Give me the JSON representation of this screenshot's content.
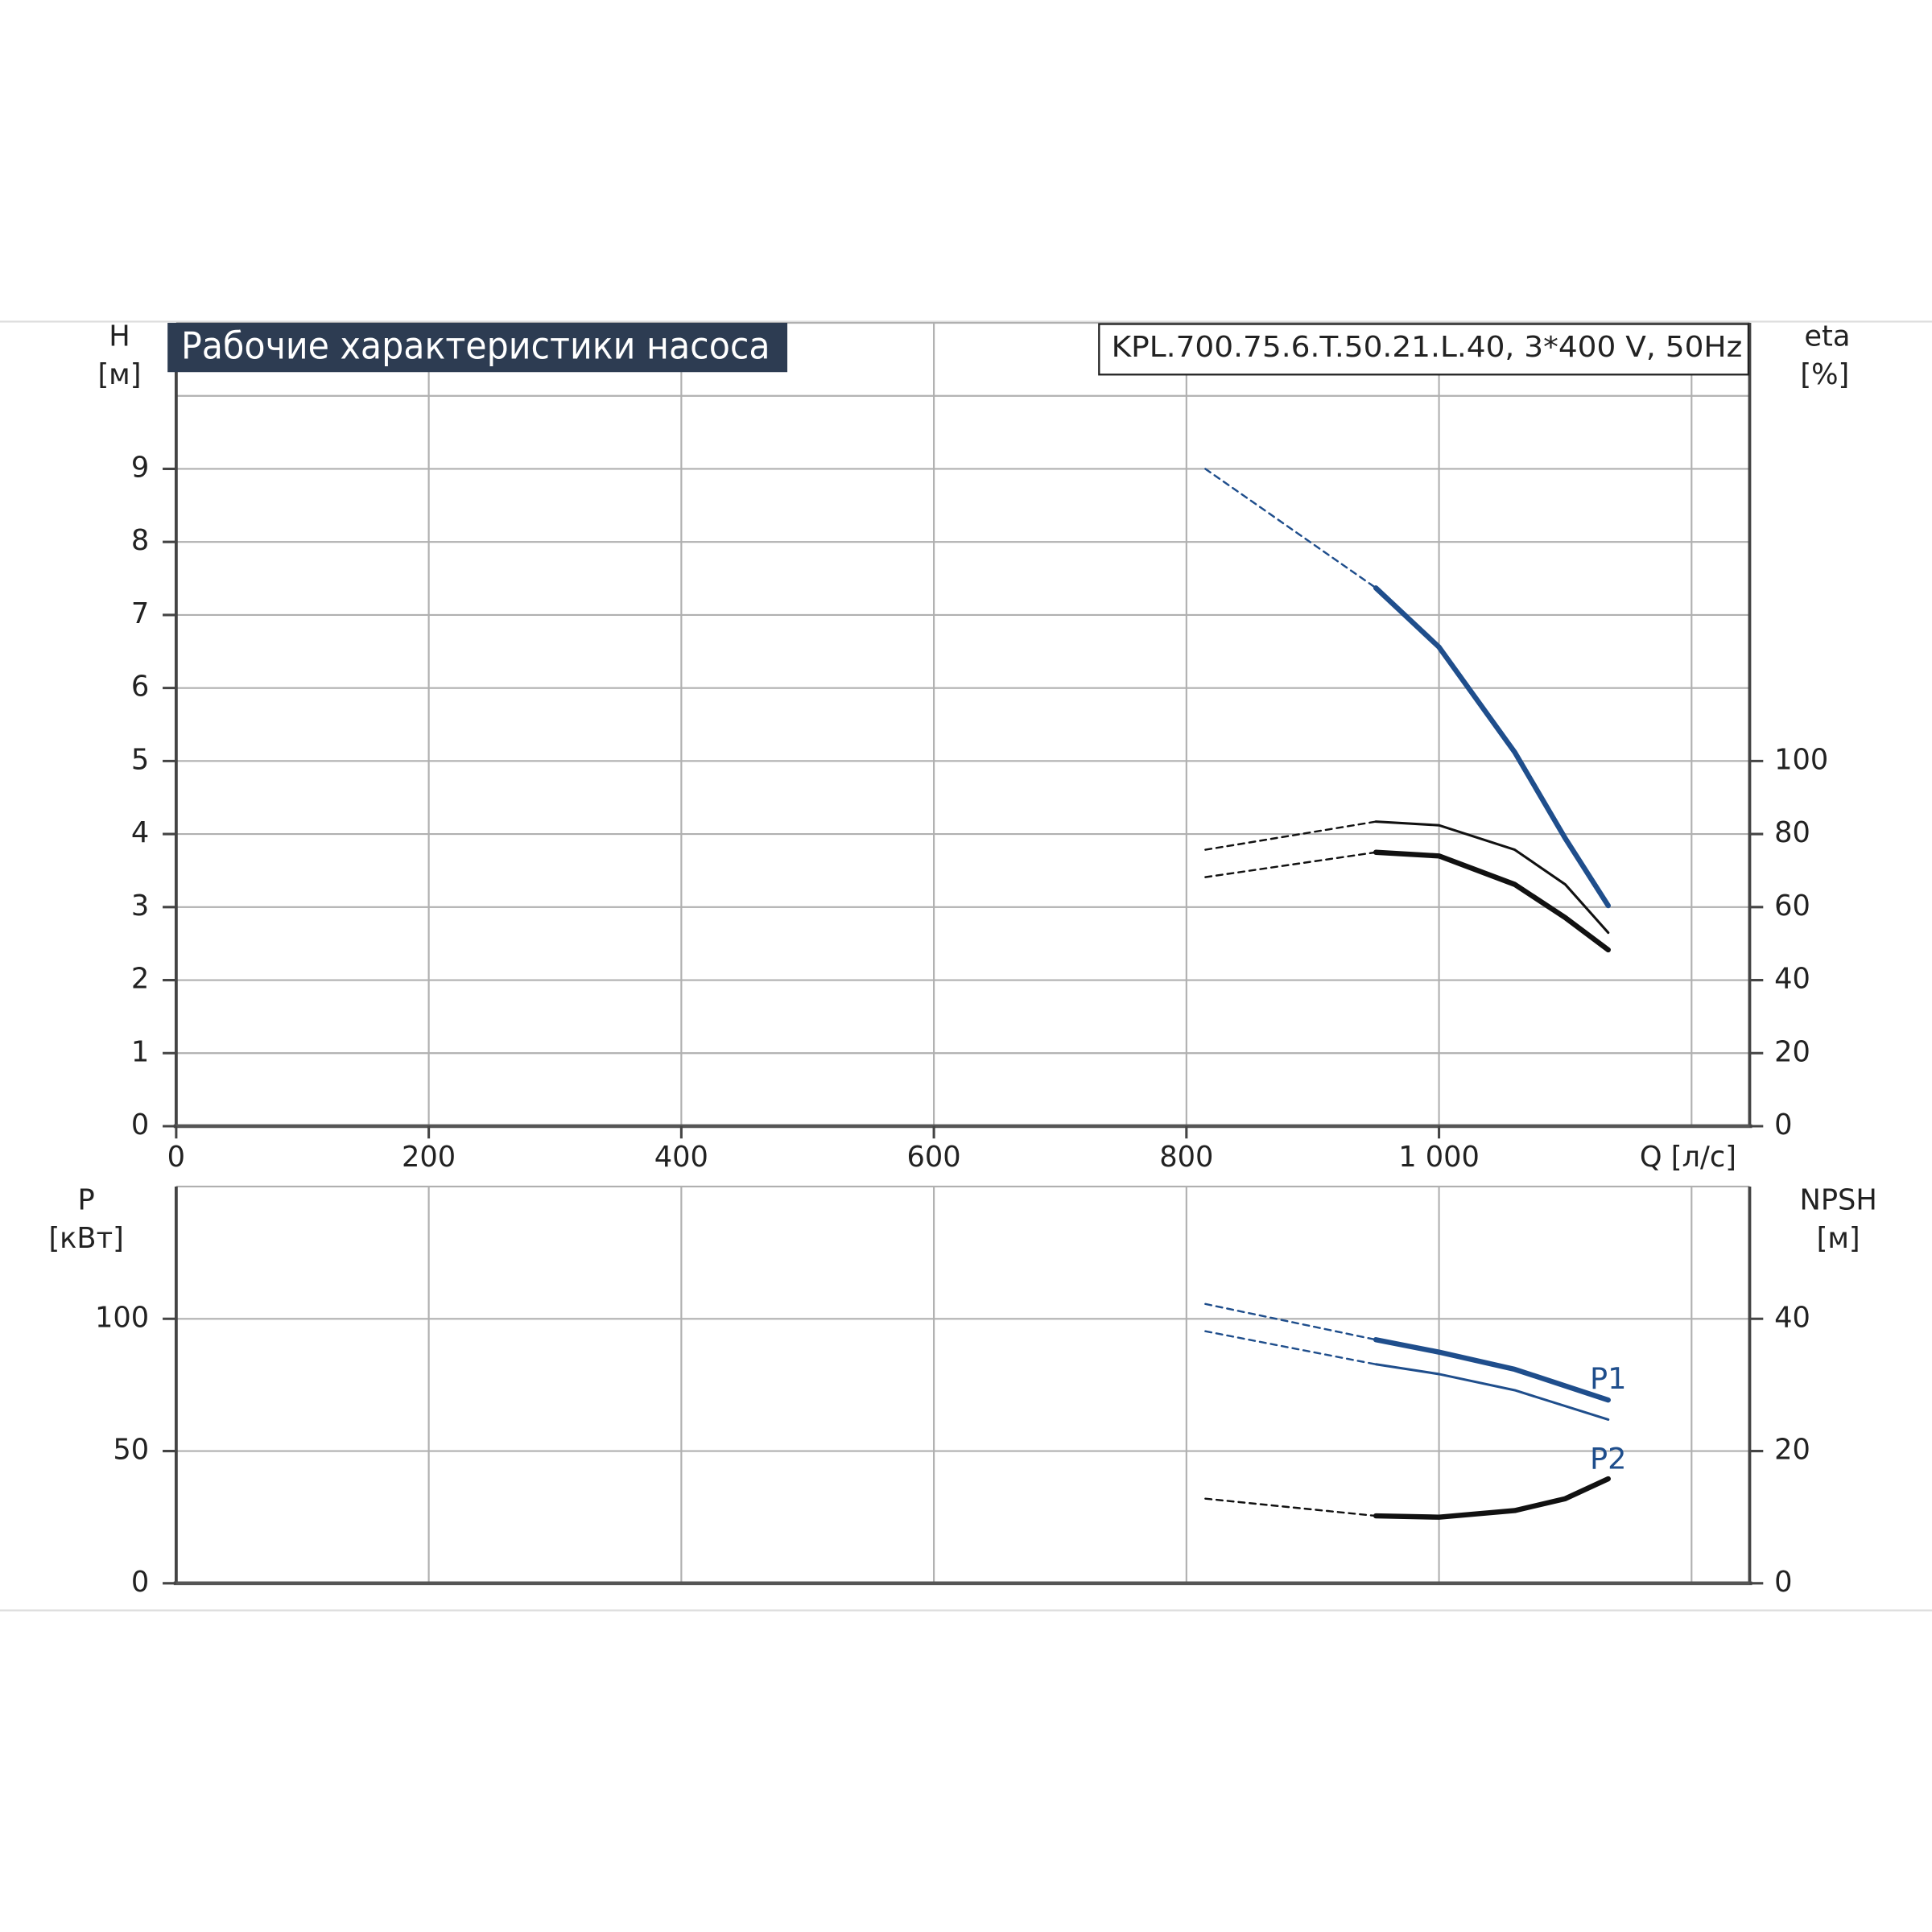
{
  "chart_data": [
    {
      "type": "line",
      "title": "Рабочие характеристики насоса",
      "subtitle": "KPL.700.75.6.T.50.21.L.40, 3*400 V, 50Hz",
      "x_label": "Q [л/с]",
      "y_label": "H",
      "y_unit": "[м]",
      "y2_label": "eta",
      "y2_unit": "[%]",
      "xlim": [
        0,
        1246
      ],
      "xticks": [
        0,
        200,
        400,
        600,
        800,
        {
          "value": 1000,
          "label": "1 000"
        }
      ],
      "xgrid": [
        200,
        400,
        600,
        800,
        1000,
        1200
      ],
      "ylim": [
        0,
        11
      ],
      "yticks": [
        0,
        1,
        2,
        3,
        4,
        5,
        6,
        7,
        8,
        9
      ],
      "ygrid": [
        1,
        2,
        3,
        4,
        5,
        6,
        7,
        8,
        9,
        10
      ],
      "y2lim": [
        0,
        220
      ],
      "y2ticks": [
        0,
        20,
        40,
        60,
        80,
        100
      ],
      "grid": true,
      "series": [
        {
          "color": "#1f4e8c",
          "style": "dashed",
          "x": [
            815,
            950
          ],
          "values": [
            9.0,
            7.37
          ]
        },
        {
          "color": "#1f4e8c",
          "style": "thick",
          "x": [
            950,
            1000,
            1060,
            1100,
            1134
          ],
          "values": [
            7.37,
            6.56,
            5.12,
            3.94,
            3.02
          ]
        },
        {
          "color": "#111111",
          "style": "dashed",
          "axis": "y2",
          "x": [
            815,
            950
          ],
          "values": [
            75.7,
            83.4
          ]
        },
        {
          "color": "#111111",
          "style": "thin",
          "axis": "y2",
          "x": [
            950,
            1000,
            1060,
            1100,
            1134
          ],
          "values": [
            83.4,
            82.4,
            75.7,
            66.2,
            53.0
          ]
        },
        {
          "color": "#111111",
          "style": "dashed",
          "axis": "y2",
          "x": [
            815,
            950
          ],
          "values": [
            68.2,
            75.0
          ]
        },
        {
          "color": "#111111",
          "style": "thick",
          "axis": "y2",
          "x": [
            950,
            1000,
            1060,
            1100,
            1134
          ],
          "values": [
            75.0,
            74.0,
            66.2,
            57.1,
            48.3
          ]
        }
      ]
    },
    {
      "type": "line",
      "y_label": "P",
      "y_unit": "[кВт]",
      "y2_label": "NPSH",
      "y2_unit": "[м]",
      "xlim": [
        0,
        1246
      ],
      "xgrid": [
        200,
        400,
        600,
        800,
        1000,
        1200
      ],
      "ylim": [
        0,
        150
      ],
      "yticks": [
        0,
        50,
        100
      ],
      "y2lim": [
        0,
        60
      ],
      "y2ticks": [
        0,
        20,
        40
      ],
      "grid": true,
      "series": [
        {
          "color": "#1f4e8c",
          "style": "dashed",
          "x": [
            815,
            950
          ],
          "values": [
            105.6,
            92.1
          ]
        },
        {
          "name": "P1",
          "color": "#1f4e8c",
          "style": "thick",
          "x": [
            950,
            1000,
            1060,
            1134
          ],
          "values": [
            92.1,
            87.4,
            80.9,
            69.3
          ]
        },
        {
          "color": "#1f4e8c",
          "style": "dashed",
          "x": [
            815,
            950
          ],
          "values": [
            95.3,
            82.8
          ]
        },
        {
          "name": "P2",
          "color": "#1f4e8c",
          "style": "thin",
          "x": [
            950,
            1000,
            1060,
            1134
          ],
          "values": [
            82.8,
            79.1,
            73.0,
            61.9
          ]
        },
        {
          "color": "#111111",
          "style": "dashed",
          "axis": "y2",
          "x": [
            815,
            950
          ],
          "values": [
            12.8,
            10.2
          ]
        },
        {
          "color": "#111111",
          "style": "thick",
          "axis": "y2",
          "x": [
            950,
            1000,
            1060,
            1100,
            1134
          ],
          "values": [
            10.2,
            10.0,
            11.0,
            12.8,
            15.8
          ]
        }
      ]
    }
  ]
}
